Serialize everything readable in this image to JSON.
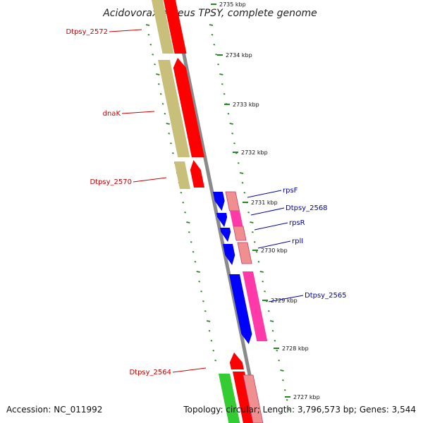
{
  "title": "Acidovorax ebreus TPSY, complete genome",
  "footer": {
    "accession": "Accession: NC_011992",
    "info": "Topology: circular; Length: 3,796,573 bp; Genes: 3,544"
  },
  "ruler_labels": [
    "2735 kbp",
    "2734 kbp",
    "2733 kbp",
    "2732 kbp",
    "2731 kbp",
    "2730 kbp",
    "2729 kbp",
    "2728 kbp",
    "2727 kbp"
  ],
  "gene_labels": {
    "dtpsy_2572": "Dtpsy_2572",
    "dnak": "dnaK",
    "dtpsy_2570": "Dtpsy_2570",
    "dtpsy_2564": "Dtpsy_2564",
    "rpsf": "rpsF",
    "dtpsy_2568": "Dtpsy_2568",
    "rpsr": "rpsR",
    "rpli": "rplI",
    "dtpsy_2565": "Dtpsy_2565"
  },
  "colors": {
    "cds_reverse": "#ff0000",
    "rna_reverse": "#c8bf7a",
    "cds_forward": "#0000ff",
    "rna_forward_light": "#ef8f8f",
    "rna_forward_pink": "#ff3aa8",
    "green_feature": "#33cc33",
    "backbone": "#888888",
    "tick": "#228822",
    "label_left": "#cc0000",
    "label_right": "#0000aa"
  }
}
